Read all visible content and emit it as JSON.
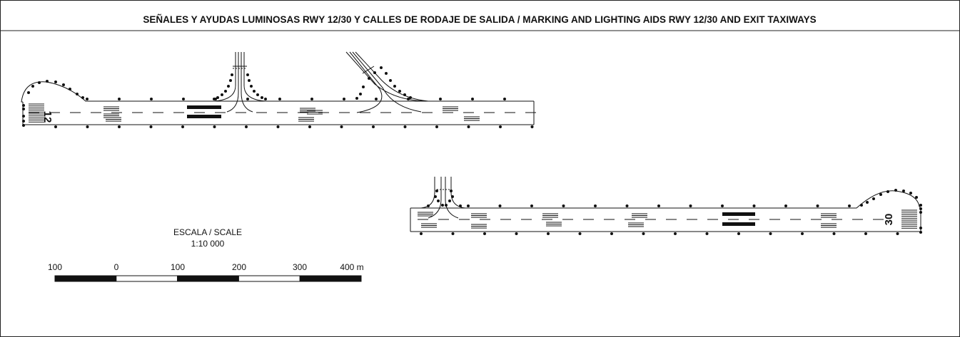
{
  "header": {
    "title": "SEÑALES Y AYUDAS LUMINOSAS RWY 12/30 Y CALLES DE RODAJE DE SALIDA / MARKING AND LIGHTING AIDS RWY 12/30 AND EXIT TAXIWAYS"
  },
  "runways": [
    {
      "designator": "12"
    },
    {
      "designator": "30"
    }
  ],
  "scale": {
    "title": "ESCALA / SCALE",
    "ratio": "1:10 000",
    "labels": [
      "100",
      "0",
      "100",
      "200",
      "300",
      "400 m"
    ]
  }
}
